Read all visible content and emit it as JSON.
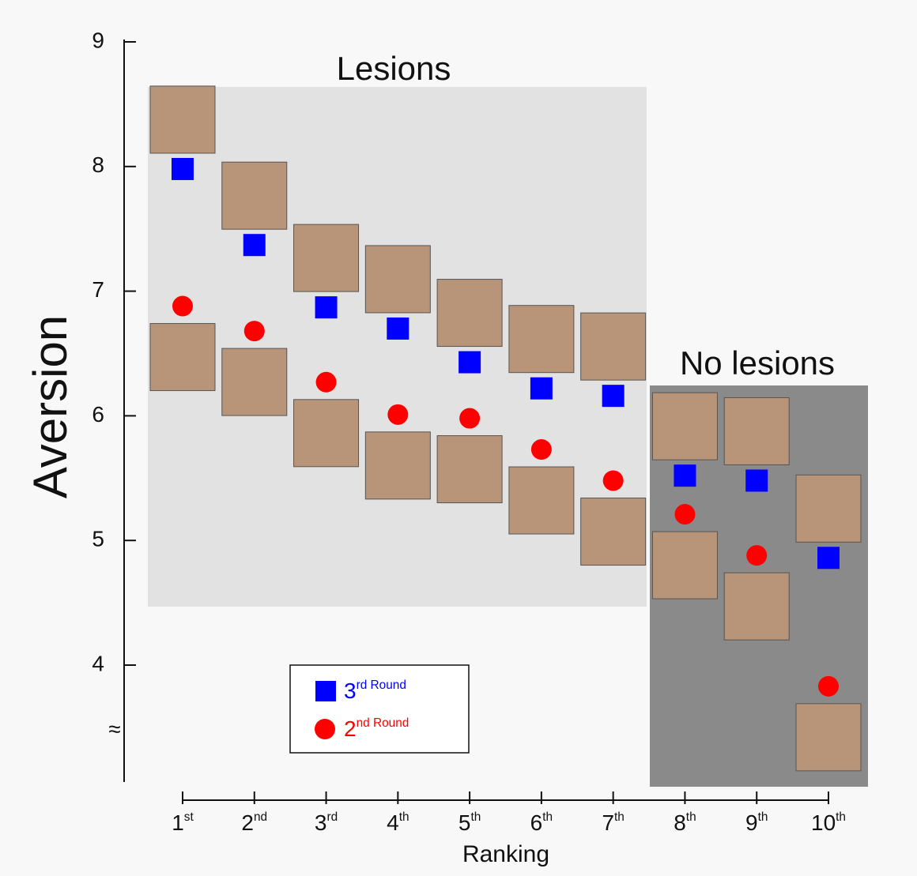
{
  "chart_data": {
    "type": "scatter",
    "x_label": "Ranking",
    "y_label": "Aversion",
    "categories": [
      "1st",
      "2nd",
      "3rd",
      "4th",
      "5th",
      "6th",
      "7th",
      "8th",
      "9th",
      "10th"
    ],
    "series": [
      {
        "name": "3rd Round",
        "color": "#0000ff",
        "marker": "square",
        "values": [
          7.98,
          7.37,
          6.87,
          6.7,
          6.43,
          6.22,
          6.16,
          5.52,
          5.48,
          4.86
        ]
      },
      {
        "name": "2nd Round",
        "color": "#ff0000",
        "marker": "circle",
        "values": [
          6.88,
          6.68,
          6.27,
          6.01,
          5.98,
          5.73,
          5.48,
          5.21,
          4.88,
          3.83
        ]
      }
    ],
    "ylim": [
      3.05,
      9
    ],
    "yticks": [
      4,
      5,
      6,
      7,
      8,
      9
    ],
    "regions": [
      {
        "label": "Lesions"
      },
      {
        "label": "No lesions"
      }
    ]
  }
}
